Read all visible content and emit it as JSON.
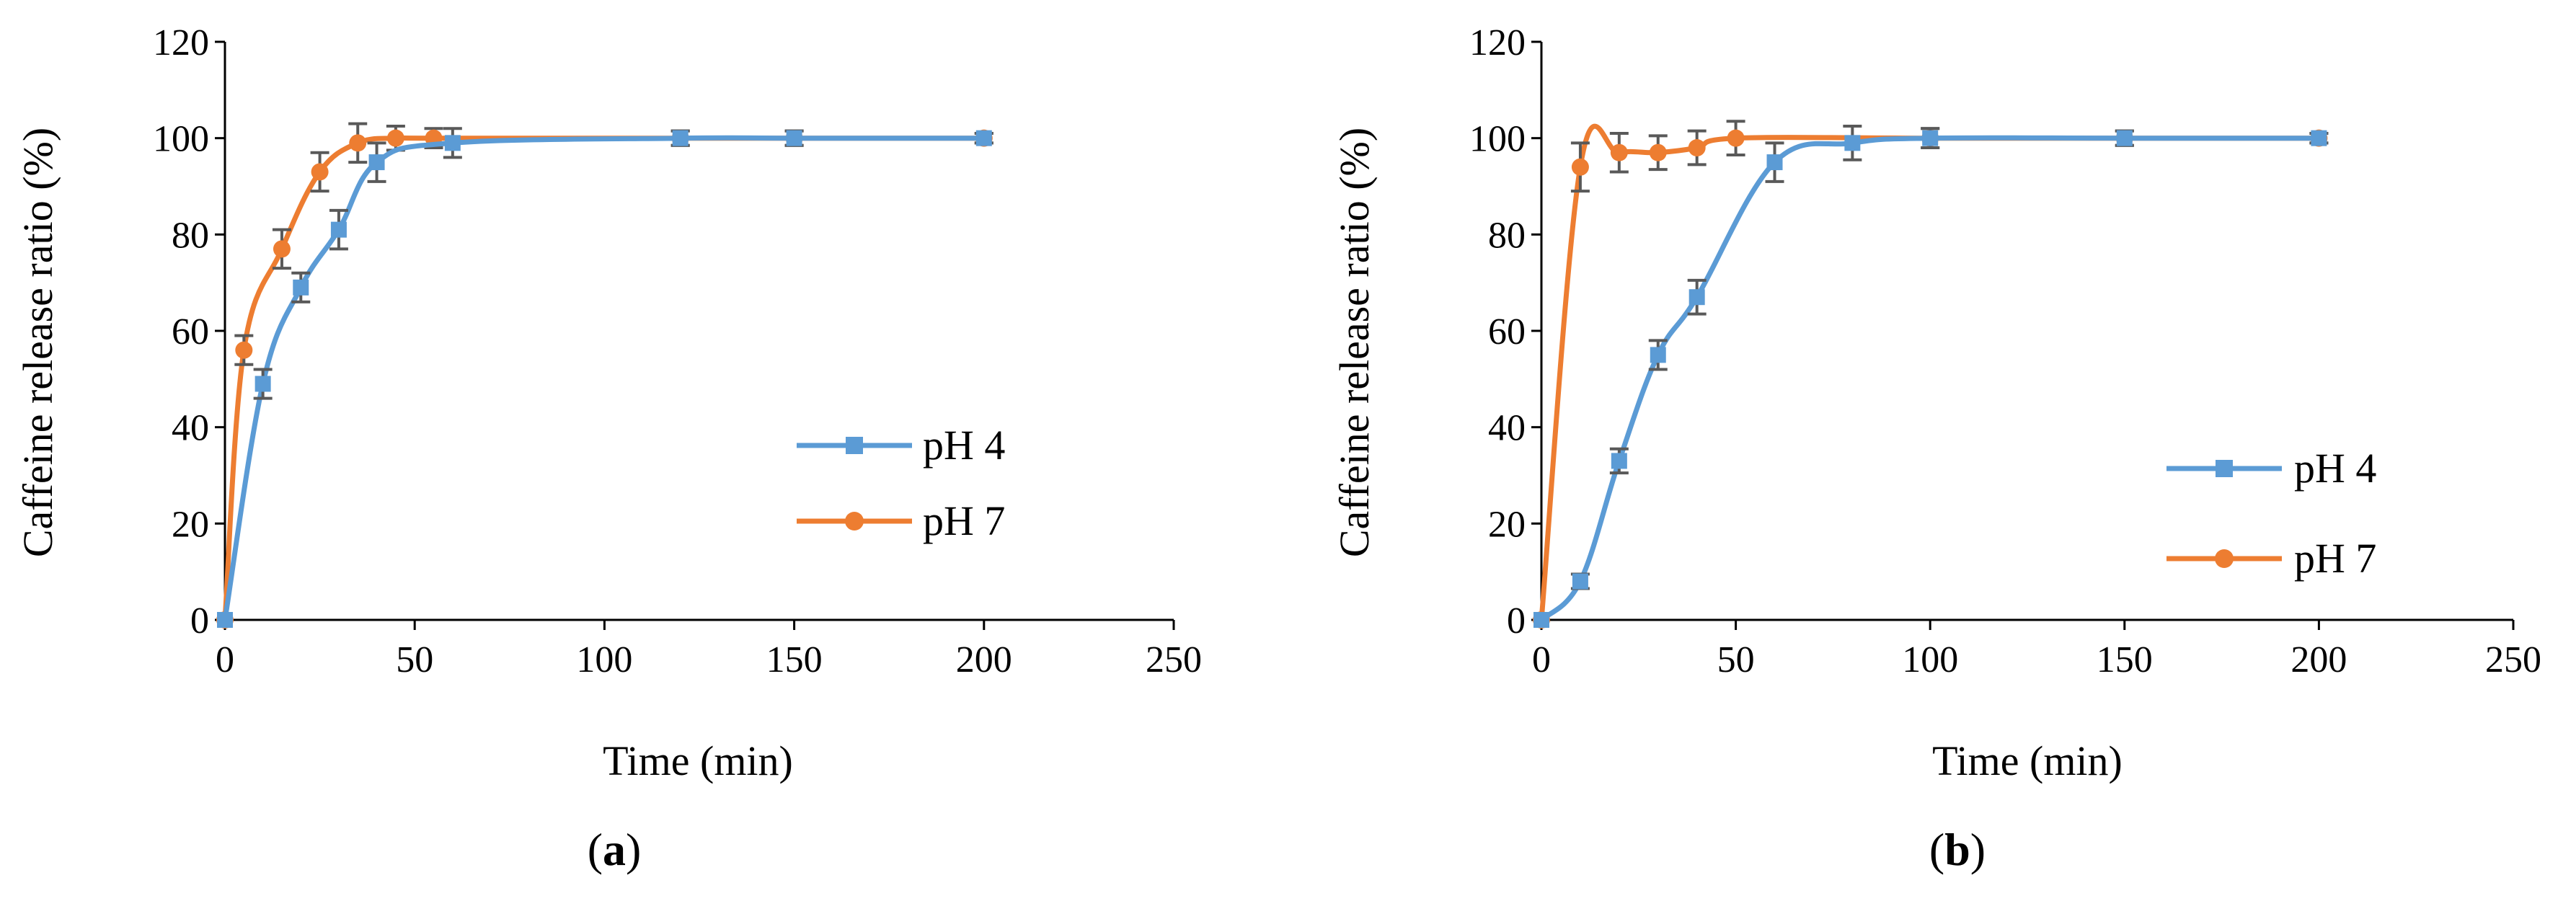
{
  "chart_data": [
    {
      "type": "line",
      "panel_label_open": "(",
      "panel_label_letter": "a",
      "panel_label_close": ")",
      "xlabel": "Time (min)",
      "ylabel": "Caffeine release ratio (%)",
      "xlim": [
        0,
        250
      ],
      "ylim": [
        0,
        120
      ],
      "xticks": [
        0,
        50,
        100,
        150,
        200,
        250
      ],
      "yticks": [
        0,
        20,
        40,
        60,
        80,
        100,
        120
      ],
      "grid": false,
      "legend_position": "center-right",
      "series": [
        {
          "name": "pH 4",
          "color": "#5B9BD5",
          "marker": "square",
          "x": [
            0,
            10,
            20,
            30,
            40,
            60,
            120,
            150,
            200
          ],
          "y": [
            0,
            49,
            69,
            81,
            95,
            99,
            100,
            100,
            100
          ],
          "err": [
            0,
            3,
            3,
            4,
            4,
            3,
            1.5,
            1.5,
            1
          ]
        },
        {
          "name": "pH 7",
          "color": "#ED7D31",
          "marker": "circle",
          "x": [
            0,
            5,
            15,
            25,
            35,
            45,
            55,
            120,
            150,
            200
          ],
          "y": [
            0,
            56,
            77,
            93,
            99,
            100,
            100,
            100,
            100,
            100
          ],
          "err": [
            0,
            3,
            4,
            4,
            4,
            2.5,
            2,
            1.5,
            1.5,
            1
          ]
        }
      ]
    },
    {
      "type": "line",
      "panel_label_open": "(",
      "panel_label_letter": "b",
      "panel_label_close": ")",
      "xlabel": "Time (min)",
      "ylabel": "Caffeine release ratio (%)",
      "xlim": [
        0,
        250
      ],
      "ylim": [
        0,
        120
      ],
      "xticks": [
        0,
        50,
        100,
        150,
        200,
        250
      ],
      "yticks": [
        0,
        20,
        40,
        60,
        80,
        100,
        120
      ],
      "grid": false,
      "legend_position": "bottom-right",
      "series": [
        {
          "name": "pH 4",
          "color": "#5B9BD5",
          "marker": "square",
          "x": [
            0,
            10,
            20,
            30,
            40,
            60,
            80,
            100,
            150,
            200
          ],
          "y": [
            0,
            8,
            33,
            55,
            67,
            95,
            99,
            100,
            100,
            100
          ],
          "err": [
            0,
            1.5,
            2.5,
            3,
            3.5,
            4,
            3.5,
            2,
            1.5,
            1
          ]
        },
        {
          "name": "pH 7",
          "color": "#ED7D31",
          "marker": "circle",
          "x": [
            0,
            10,
            20,
            30,
            40,
            50,
            100,
            150,
            200
          ],
          "y": [
            0,
            94,
            97,
            97,
            98,
            100,
            100,
            100,
            100
          ],
          "err": [
            0,
            5,
            4,
            3.5,
            3.5,
            3.5,
            2,
            1.5,
            1
          ]
        }
      ]
    }
  ]
}
